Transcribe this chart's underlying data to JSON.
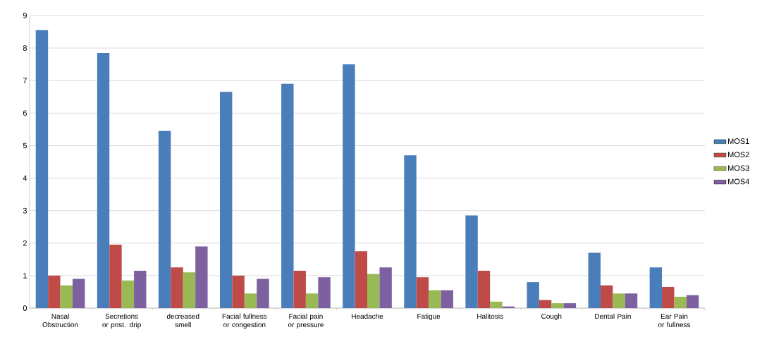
{
  "chart_data": {
    "type": "bar",
    "categories": [
      "Nasal Obstruction",
      "Secretions or post. drip",
      "decreased smell",
      "Facial fullness or congestion",
      "Facial pain or pressure",
      "Headache",
      "Fatigue",
      "Halitosis",
      "Cough",
      "Dental Pain",
      "Ear Pain or fullness"
    ],
    "series": [
      {
        "name": "MOS1",
        "color": "#4a7ebb",
        "values": [
          8.55,
          7.85,
          5.45,
          6.65,
          6.9,
          7.5,
          4.7,
          2.85,
          0.8,
          1.7,
          1.25
        ]
      },
      {
        "name": "MOS2",
        "color": "#be4b48",
        "values": [
          1.0,
          1.95,
          1.25,
          1.0,
          1.15,
          1.75,
          0.95,
          1.15,
          0.25,
          0.7,
          0.65
        ]
      },
      {
        "name": "MOS3",
        "color": "#98b954",
        "values": [
          0.7,
          0.85,
          1.1,
          0.45,
          0.45,
          1.05,
          0.55,
          0.2,
          0.15,
          0.45,
          0.35
        ]
      },
      {
        "name": "MOS4",
        "color": "#7d60a0",
        "values": [
          0.9,
          1.15,
          1.9,
          0.9,
          0.95,
          1.25,
          0.55,
          0.05,
          0.15,
          0.45,
          0.4
        ]
      }
    ],
    "ylim": [
      0,
      9
    ],
    "yticks": [
      0,
      1,
      2,
      3,
      4,
      5,
      6,
      7,
      8,
      9
    ],
    "grid": "y",
    "legend": "right"
  }
}
